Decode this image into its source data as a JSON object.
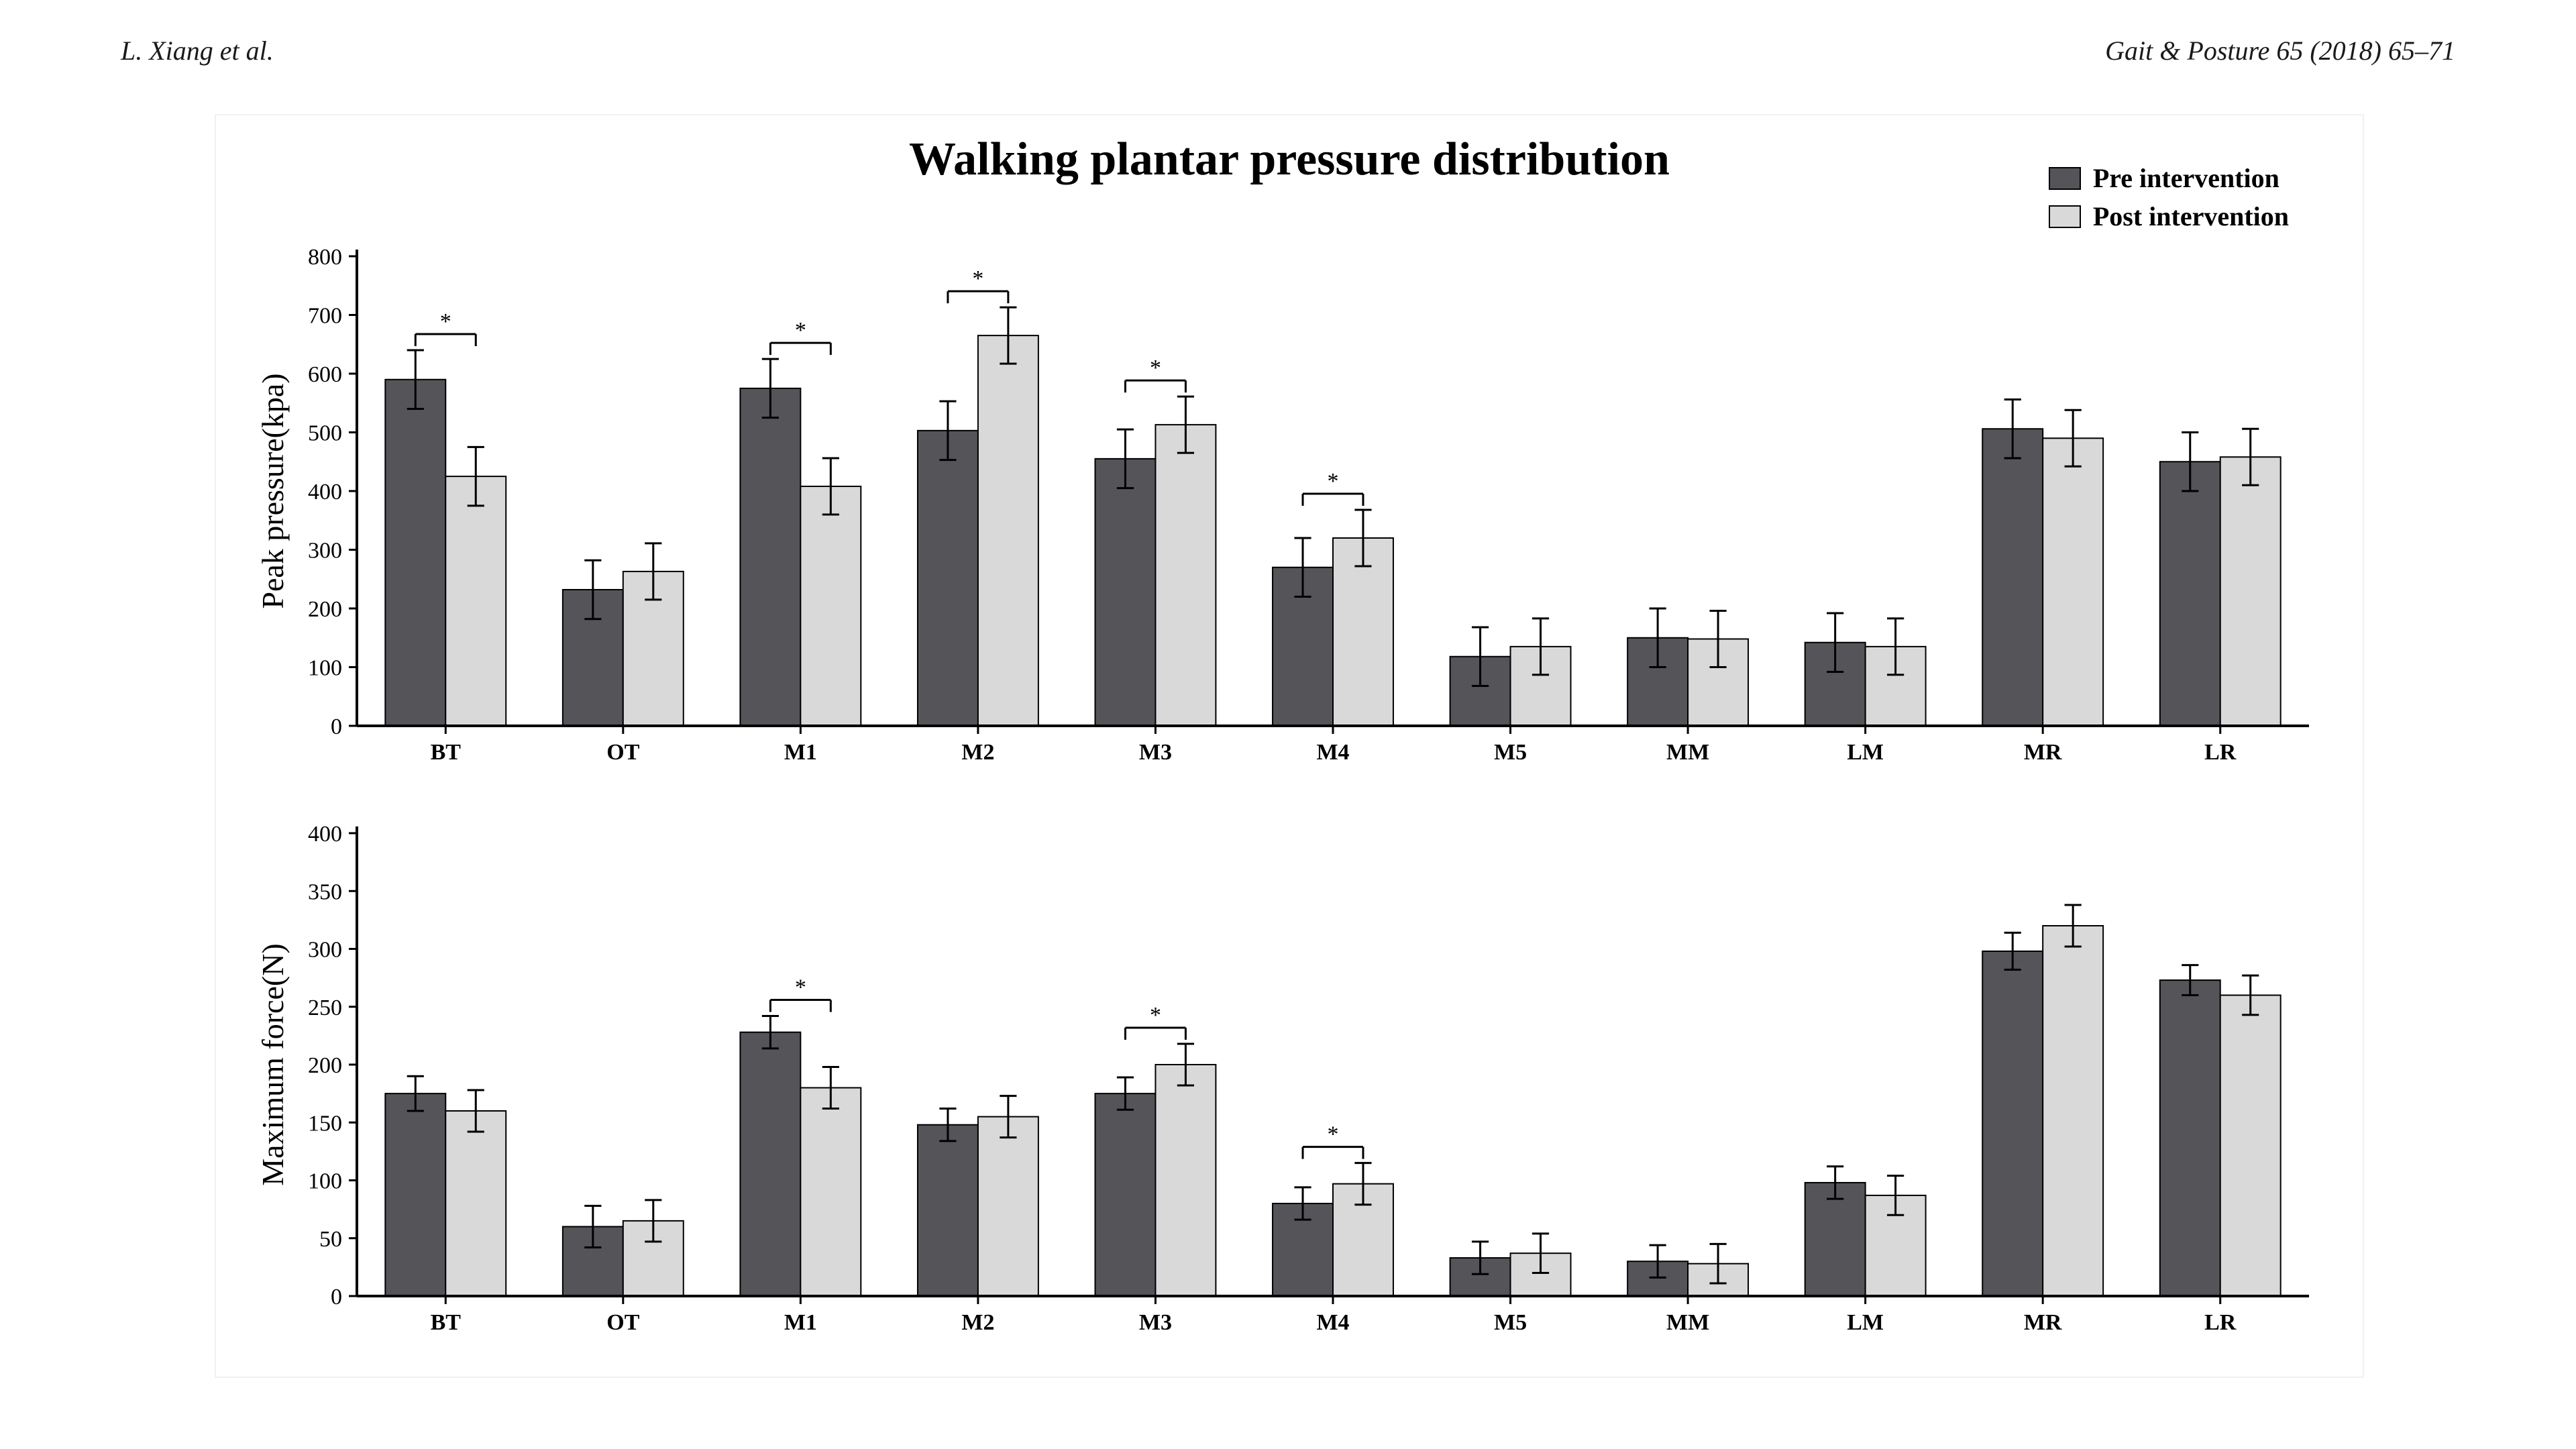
{
  "header": {
    "left": "L. Xiang et al.",
    "right": "Gait & Posture 65 (2018) 65–71"
  },
  "figure": {
    "title": "Walking plantar pressure distribution",
    "legend": {
      "pre": "Pre intervention",
      "post": "Post intervention"
    },
    "colors": {
      "pre": "#555459",
      "post": "#d9d9d9",
      "axis": "#000000",
      "bar_border": "#000000",
      "err": "#000000",
      "bg": "#ffffff"
    },
    "categories": [
      "BT",
      "OT",
      "M1",
      "M2",
      "M3",
      "M4",
      "M5",
      "MM",
      "LM",
      "MR",
      "LR"
    ],
    "top_chart": {
      "type": "bar",
      "ylabel": "Peak pressure(kpa)",
      "ylim": [
        0,
        800
      ],
      "ytick_step": 100,
      "bar_width_ratio": 0.34,
      "cap_ratio": 0.28,
      "tick_fontsize": 34,
      "label_fontsize": 46,
      "title_fontsize": 70,
      "data": [
        {
          "cat": "BT",
          "pre": 590,
          "post": 425,
          "pre_err": 50,
          "post_err": 50,
          "sig": true
        },
        {
          "cat": "OT",
          "pre": 232,
          "post": 263,
          "pre_err": 50,
          "post_err": 48,
          "sig": false
        },
        {
          "cat": "M1",
          "pre": 575,
          "post": 408,
          "pre_err": 50,
          "post_err": 48,
          "sig": true
        },
        {
          "cat": "M2",
          "pre": 503,
          "post": 665,
          "pre_err": 50,
          "post_err": 48,
          "sig": true
        },
        {
          "cat": "M3",
          "pre": 455,
          "post": 513,
          "pre_err": 50,
          "post_err": 48,
          "sig": true
        },
        {
          "cat": "M4",
          "pre": 270,
          "post": 320,
          "pre_err": 50,
          "post_err": 48,
          "sig": true
        },
        {
          "cat": "M5",
          "pre": 118,
          "post": 135,
          "pre_err": 50,
          "post_err": 48,
          "sig": false
        },
        {
          "cat": "MM",
          "pre": 150,
          "post": 148,
          "pre_err": 50,
          "post_err": 48,
          "sig": false
        },
        {
          "cat": "LM",
          "pre": 142,
          "post": 135,
          "pre_err": 50,
          "post_err": 48,
          "sig": false
        },
        {
          "cat": "MR",
          "pre": 506,
          "post": 490,
          "pre_err": 50,
          "post_err": 48,
          "sig": false
        },
        {
          "cat": "LR",
          "pre": 450,
          "post": 458,
          "pre_err": 50,
          "post_err": 48,
          "sig": false
        }
      ]
    },
    "bottom_chart": {
      "type": "bar",
      "ylabel": "Maximum force(N)",
      "ylim": [
        0,
        400
      ],
      "ytick_step": 50,
      "bar_width_ratio": 0.34,
      "cap_ratio": 0.28,
      "tick_fontsize": 34,
      "label_fontsize": 46,
      "data": [
        {
          "cat": "BT",
          "pre": 175,
          "post": 160,
          "pre_err": 15,
          "post_err": 18,
          "sig": false
        },
        {
          "cat": "OT",
          "pre": 60,
          "post": 65,
          "pre_err": 18,
          "post_err": 18,
          "sig": false
        },
        {
          "cat": "M1",
          "pre": 228,
          "post": 180,
          "pre_err": 14,
          "post_err": 18,
          "sig": true
        },
        {
          "cat": "M2",
          "pre": 148,
          "post": 155,
          "pre_err": 14,
          "post_err": 18,
          "sig": false
        },
        {
          "cat": "M3",
          "pre": 175,
          "post": 200,
          "pre_err": 14,
          "post_err": 18,
          "sig": true
        },
        {
          "cat": "M4",
          "pre": 80,
          "post": 97,
          "pre_err": 14,
          "post_err": 18,
          "sig": true
        },
        {
          "cat": "M5",
          "pre": 33,
          "post": 37,
          "pre_err": 14,
          "post_err": 17,
          "sig": false
        },
        {
          "cat": "MM",
          "pre": 30,
          "post": 28,
          "pre_err": 14,
          "post_err": 17,
          "sig": false
        },
        {
          "cat": "LM",
          "pre": 98,
          "post": 87,
          "pre_err": 14,
          "post_err": 17,
          "sig": false
        },
        {
          "cat": "MR",
          "pre": 298,
          "post": 320,
          "pre_err": 16,
          "post_err": 18,
          "sig": false
        },
        {
          "cat": "LR",
          "pre": 273,
          "post": 260,
          "pre_err": 13,
          "post_err": 17,
          "sig": false
        }
      ]
    }
  }
}
